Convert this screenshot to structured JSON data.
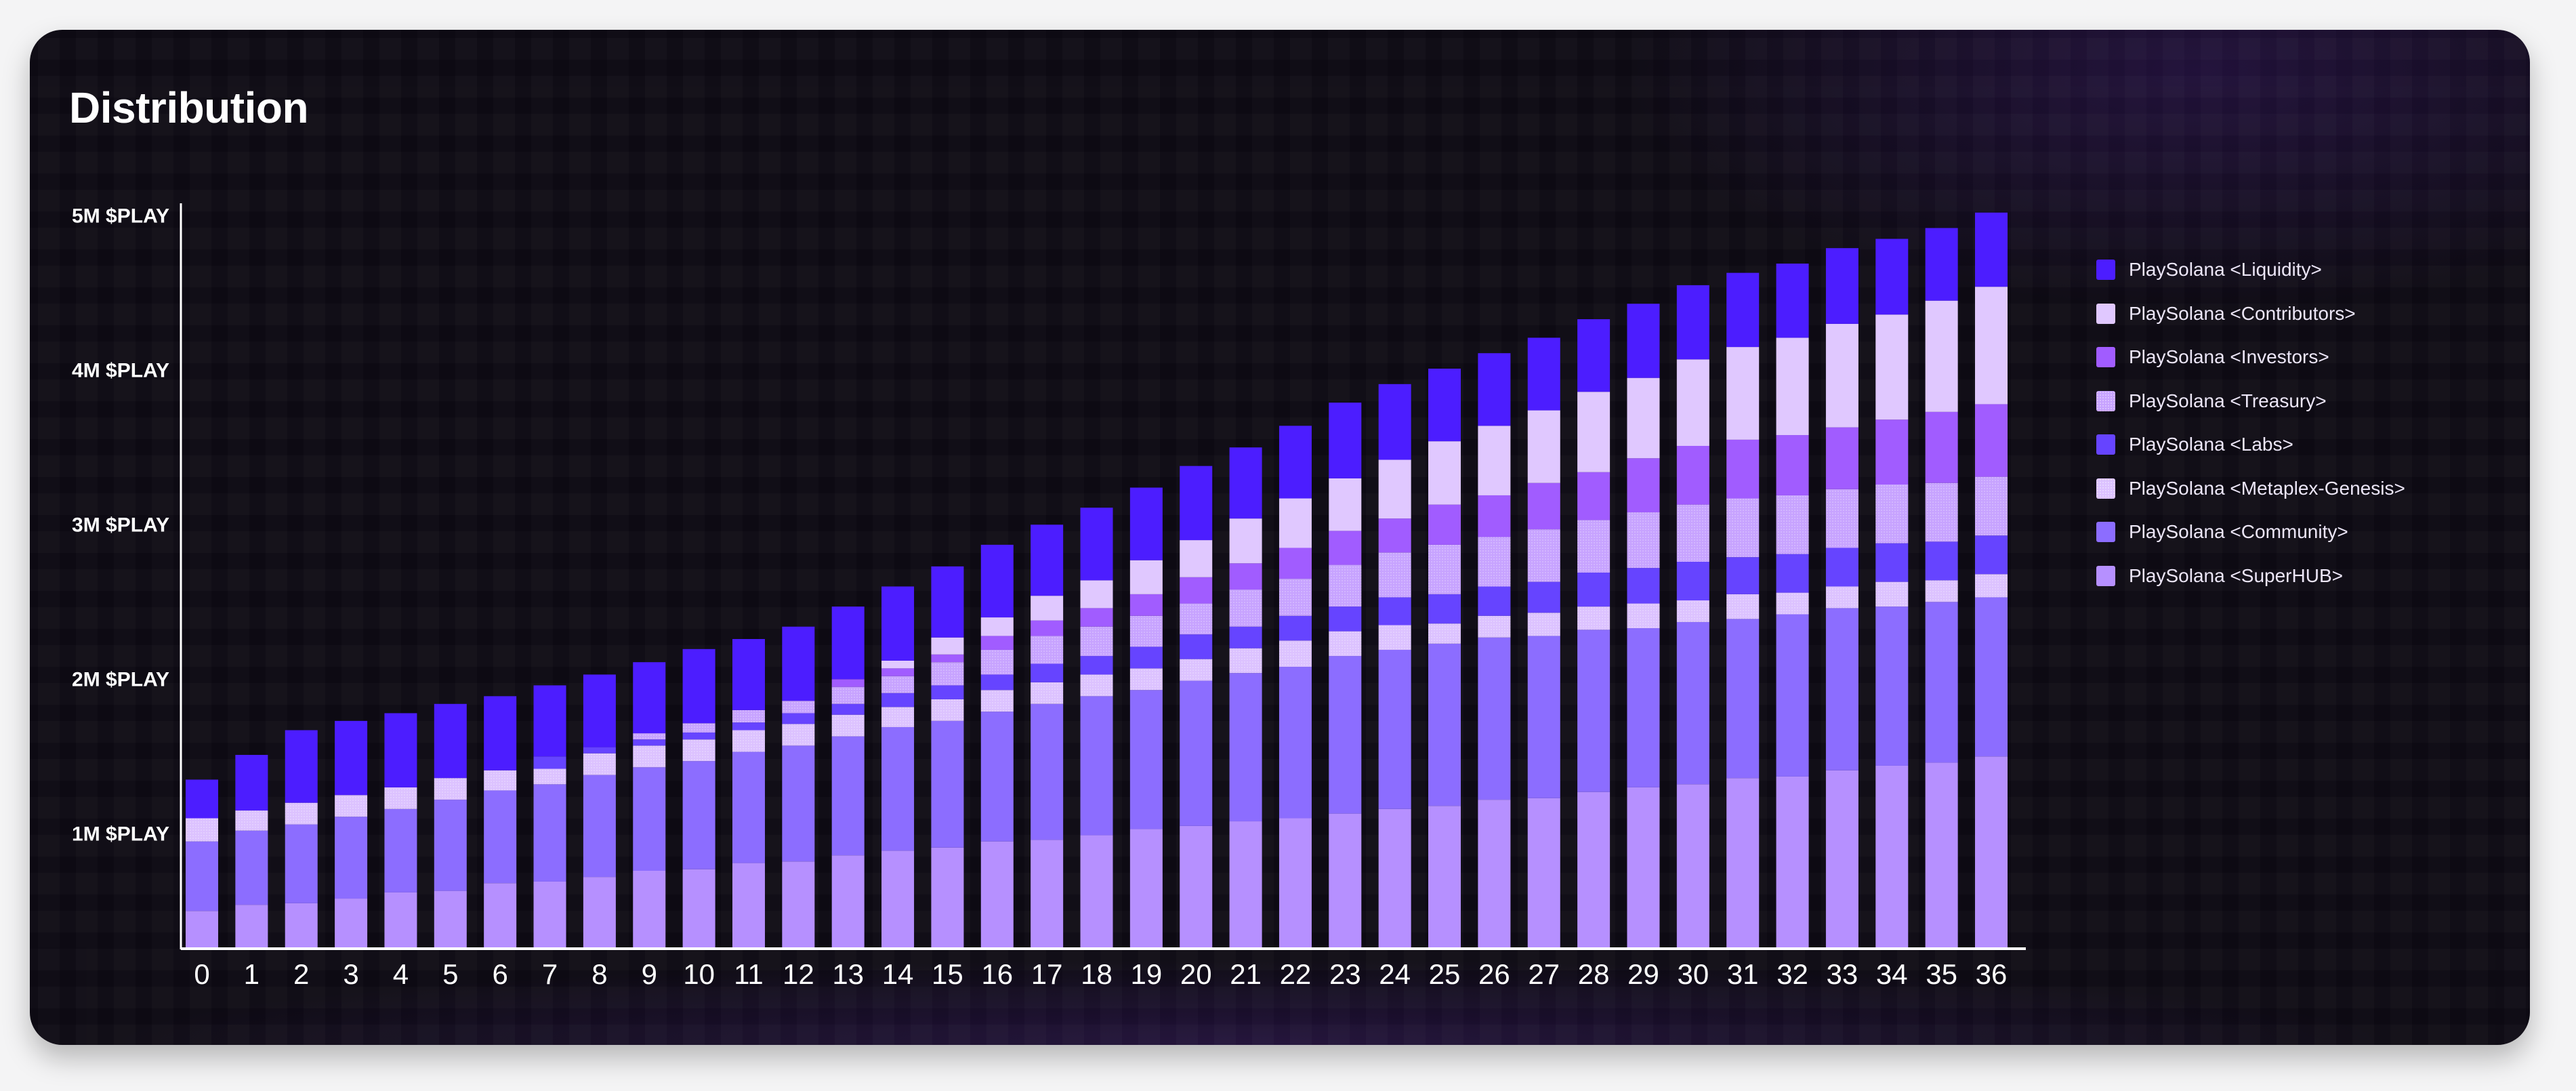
{
  "title": "Distribution",
  "chart_data": {
    "type": "bar",
    "stacked": true,
    "title": "Distribution",
    "xlabel": "",
    "ylabel": "",
    "unit": "M $PLAY",
    "ylim": [
      0.26,
      5.0
    ],
    "y_ticks": [
      {
        "value": 1,
        "label": "1M $PLAY"
      },
      {
        "value": 2,
        "label": "2M $PLAY"
      },
      {
        "value": 3,
        "label": "3M $PLAY"
      },
      {
        "value": 4,
        "label": "4M $PLAY"
      },
      {
        "value": 5,
        "label": "5M $PLAY"
      }
    ],
    "grid": true,
    "legend_position": "right",
    "categories": [
      "0",
      "1",
      "2",
      "3",
      "4",
      "5",
      "6",
      "7",
      "8",
      "9",
      "10",
      "11",
      "12",
      "13",
      "14",
      "15",
      "16",
      "17",
      "18",
      "19",
      "20",
      "21",
      "22",
      "23",
      "24",
      "25",
      "26",
      "27",
      "28",
      "29",
      "30",
      "31",
      "32",
      "33",
      "34",
      "35",
      "36"
    ],
    "series": [
      {
        "name": "PlaySolana <SuperHUB>",
        "color": "#b690ff",
        "pattern": false,
        "values": [
          0.5,
          0.54,
          0.55,
          0.58,
          0.62,
          0.63,
          0.68,
          0.69,
          0.72,
          0.76,
          0.77,
          0.81,
          0.82,
          0.86,
          0.89,
          0.91,
          0.95,
          0.96,
          0.99,
          1.03,
          1.05,
          1.08,
          1.1,
          1.13,
          1.16,
          1.18,
          1.22,
          1.23,
          1.27,
          1.3,
          1.32,
          1.36,
          1.37,
          1.41,
          1.44,
          1.46,
          1.5
        ]
      },
      {
        "name": "PlaySolana <Community>",
        "color": "#8c6dff",
        "pattern": false,
        "values": [
          0.45,
          0.48,
          0.51,
          0.53,
          0.54,
          0.59,
          0.6,
          0.63,
          0.66,
          0.67,
          0.7,
          0.72,
          0.75,
          0.77,
          0.8,
          0.82,
          0.84,
          0.88,
          0.9,
          0.9,
          0.94,
          0.96,
          0.98,
          1.02,
          1.03,
          1.05,
          1.05,
          1.05,
          1.05,
          1.03,
          1.05,
          1.03,
          1.05,
          1.05,
          1.03,
          1.04,
          1.03
        ]
      },
      {
        "name": "PlaySolana <Metaplex-Genesis>",
        "color": "#dcc2ff",
        "pattern": true,
        "values": [
          0.15,
          0.13,
          0.14,
          0.14,
          0.14,
          0.14,
          0.13,
          0.1,
          0.14,
          0.14,
          0.14,
          0.14,
          0.14,
          0.14,
          0.13,
          0.14,
          0.14,
          0.14,
          0.14,
          0.14,
          0.14,
          0.16,
          0.17,
          0.16,
          0.16,
          0.13,
          0.14,
          0.15,
          0.15,
          0.16,
          0.14,
          0.16,
          0.14,
          0.14,
          0.16,
          0.14,
          0.15
        ]
      },
      {
        "name": "PlaySolana <Labs>",
        "color": "#6644ff",
        "pattern": false,
        "values": [
          0,
          0,
          0,
          0,
          0,
          0,
          0,
          0.08,
          0.04,
          0.04,
          0.045,
          0.05,
          0.07,
          0.07,
          0.09,
          0.09,
          0.1,
          0.12,
          0.12,
          0.14,
          0.16,
          0.14,
          0.16,
          0.16,
          0.18,
          0.19,
          0.19,
          0.2,
          0.22,
          0.23,
          0.25,
          0.24,
          0.25,
          0.25,
          0.25,
          0.25,
          0.25
        ]
      },
      {
        "name": "PlaySolana <Treasury>",
        "color": "#c7a3ff",
        "pattern": true,
        "values": [
          0,
          0,
          0,
          0,
          0,
          0,
          0,
          0,
          0,
          0.04,
          0.06,
          0.08,
          0.08,
          0.11,
          0.11,
          0.15,
          0.16,
          0.18,
          0.19,
          0.2,
          0.2,
          0.24,
          0.24,
          0.27,
          0.29,
          0.32,
          0.32,
          0.34,
          0.34,
          0.36,
          0.37,
          0.38,
          0.38,
          0.38,
          0.38,
          0.38,
          0.38
        ]
      },
      {
        "name": "PlaySolana <Investors>",
        "color": "#a15cff",
        "pattern": false,
        "values": [
          0,
          0,
          0,
          0,
          0,
          0,
          0,
          0,
          0,
          0,
          0,
          0,
          0,
          0.05,
          0.05,
          0.05,
          0.09,
          0.1,
          0.12,
          0.14,
          0.17,
          0.17,
          0.2,
          0.22,
          0.22,
          0.26,
          0.27,
          0.3,
          0.31,
          0.35,
          0.38,
          0.38,
          0.39,
          0.4,
          0.42,
          0.46,
          0.47
        ]
      },
      {
        "name": "PlaySolana <Contributors>",
        "color": "#e0c8ff",
        "pattern": false,
        "values": [
          0,
          0,
          0,
          0,
          0,
          0,
          0,
          0,
          0,
          0,
          0,
          0,
          0,
          0,
          0.05,
          0.11,
          0.12,
          0.16,
          0.18,
          0.22,
          0.24,
          0.29,
          0.32,
          0.34,
          0.38,
          0.41,
          0.45,
          0.47,
          0.52,
          0.52,
          0.56,
          0.6,
          0.63,
          0.67,
          0.68,
          0.72,
          0.76
        ]
      },
      {
        "name": "PlaySolana <Liquidity>",
        "color": "#4c1dff",
        "pattern": false,
        "values": [
          0.25,
          0.36,
          0.47,
          0.48,
          0.48,
          0.48,
          0.48,
          0.46,
          0.47,
          0.46,
          0.48,
          0.46,
          0.48,
          0.47,
          0.48,
          0.46,
          0.47,
          0.46,
          0.47,
          0.47,
          0.48,
          0.46,
          0.47,
          0.49,
          0.49,
          0.47,
          0.47,
          0.47,
          0.47,
          0.48,
          0.48,
          0.48,
          0.48,
          0.49,
          0.49,
          0.47,
          0.48
        ]
      }
    ]
  },
  "legend": [
    {
      "label": "PlaySolana <Liquidity>",
      "color": "#4c1dff"
    },
    {
      "label": "PlaySolana <Contributors>",
      "color": "#e0c8ff"
    },
    {
      "label": "PlaySolana <Investors>",
      "color": "#a15cff"
    },
    {
      "label": "PlaySolana <Treasury>",
      "color": "#c7a3ff"
    },
    {
      "label": "PlaySolana <Labs>",
      "color": "#6644ff"
    },
    {
      "label": "PlaySolana <Metaplex-Genesis>",
      "color": "#dcc2ff"
    },
    {
      "label": "PlaySolana <Community>",
      "color": "#8c6dff"
    },
    {
      "label": "PlaySolana <SuperHUB>",
      "color": "#b690ff"
    }
  ]
}
